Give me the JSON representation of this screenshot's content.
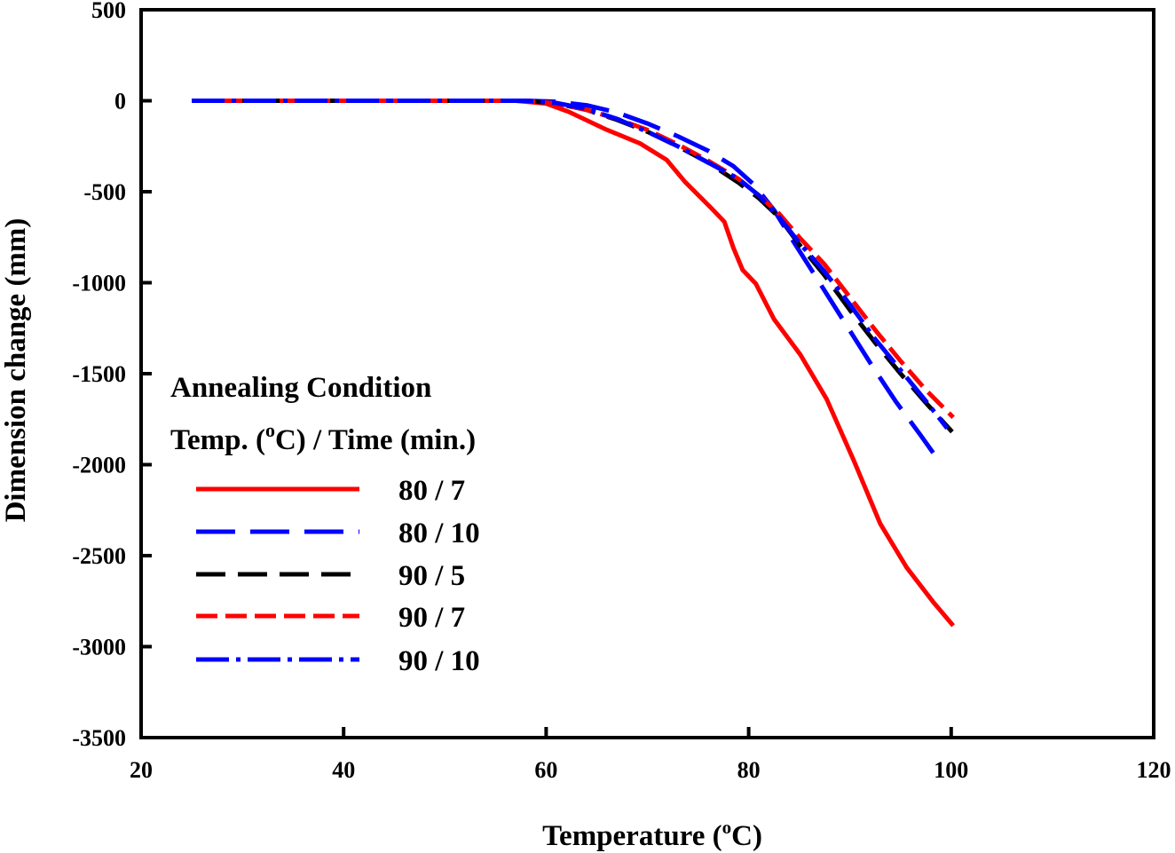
{
  "chart_data": {
    "type": "line",
    "title": "",
    "xlabel": "Temperature (",
    "xlabel_sup": "o",
    "xlabel_tail": "C)",
    "ylabel": "Dimension change (mm)",
    "xlim": [
      20,
      120
    ],
    "ylim": [
      -3500,
      500
    ],
    "xticks": [
      20,
      40,
      60,
      80,
      100,
      120
    ],
    "yticks": [
      500,
      0,
      -500,
      -1000,
      -1500,
      -2000,
      -2500,
      -3000,
      -3500
    ],
    "grid": false,
    "legend": {
      "placement": "lower-left",
      "title_line1": "Annealing Condition",
      "title_line2_a": "Temp. (",
      "title_line2_sup": "o",
      "title_line2_b": "C)  / Time (min.)"
    },
    "series": [
      {
        "name": "80 / 7",
        "color": "#ff0000",
        "style": "solid",
        "x": [
          25,
          40,
          57,
          60,
          62.2,
          65.8,
          69.3,
          71.9,
          73.7,
          76.3,
          77.6,
          78.5,
          79.4,
          80.7,
          82.5,
          85.1,
          87.7,
          90.4,
          93.0,
          95.6,
          98.3,
          100.2
        ],
        "y": [
          0,
          0,
          0,
          -15,
          -60,
          -155,
          -235,
          -325,
          -445,
          -590,
          -665,
          -810,
          -930,
          -1005,
          -1200,
          -1395,
          -1640,
          -1980,
          -2325,
          -2565,
          -2760,
          -2885
        ]
      },
      {
        "name": "80 / 10",
        "color": "#0000ff",
        "style": "long-dash",
        "x": [
          25,
          40,
          58,
          61,
          64,
          67,
          70,
          73,
          76,
          78.5,
          80.5,
          82.5,
          84.5,
          87,
          89.5,
          92,
          94.5,
          97,
          98.8
        ],
        "y": [
          0,
          0,
          0,
          -5,
          -25,
          -65,
          -125,
          -195,
          -275,
          -360,
          -460,
          -600,
          -780,
          -1000,
          -1220,
          -1440,
          -1650,
          -1840,
          -1980
        ]
      },
      {
        "name": "90 / 5",
        "color": "#000000",
        "style": "dash",
        "x": [
          25,
          40,
          58,
          61,
          64,
          67,
          70,
          73,
          76,
          79,
          81,
          83,
          85,
          87.5,
          90,
          92.5,
          95,
          97.5,
          100.1
        ],
        "y": [
          0,
          0,
          0,
          -15,
          -50,
          -105,
          -170,
          -250,
          -340,
          -450,
          -535,
          -640,
          -790,
          -960,
          -1150,
          -1330,
          -1500,
          -1660,
          -1820
        ]
      },
      {
        "name": "90 / 7",
        "color": "#ff0000",
        "style": "short-dash",
        "x": [
          25,
          40,
          58,
          61,
          64,
          67,
          70,
          73,
          76,
          79,
          81,
          83,
          85,
          87.5,
          90,
          92.5,
          95,
          97.5,
          100.2
        ],
        "y": [
          0,
          0,
          0,
          -15,
          -50,
          -100,
          -160,
          -240,
          -330,
          -430,
          -520,
          -620,
          -750,
          -900,
          -1080,
          -1260,
          -1430,
          -1590,
          -1740
        ]
      },
      {
        "name": "90 / 10",
        "color": "#0000ff",
        "style": "dash-dot",
        "x": [
          25,
          40,
          58,
          61,
          64,
          67,
          70,
          73,
          76,
          79,
          81,
          83,
          85,
          87.5,
          90,
          92.5,
          95,
          97.5,
          99.6
        ],
        "y": [
          0,
          0,
          0,
          -12,
          -45,
          -100,
          -170,
          -250,
          -340,
          -430,
          -520,
          -640,
          -780,
          -940,
          -1120,
          -1310,
          -1480,
          -1650,
          -1800
        ]
      }
    ]
  }
}
